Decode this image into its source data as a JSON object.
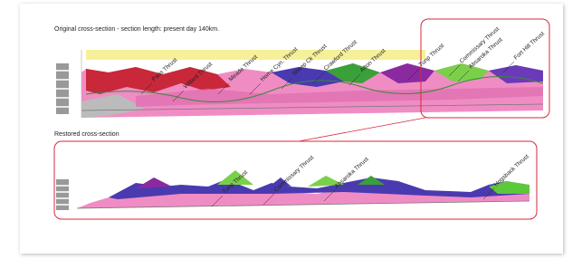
{
  "original": {
    "title": "Original cross-section - section length: present day 140km.",
    "faults": [
      "Paris Thrust",
      "Willard Thrust",
      "Meade Thrust",
      "Home Cyn. Thrust",
      "Sheep Ck Thrust",
      "Crawford Thrust",
      "Afton Thrust",
      "Tunp Thrust",
      "Commissary Thrust",
      "Absaroka Thrust",
      "Fort Hill Thrust"
    ]
  },
  "restored": {
    "title": "Restored cross-section",
    "faults": [
      "Tunp Thrust",
      "Commissary Thrust",
      "Absaroka Thrust",
      "Hogsback Thrust"
    ]
  }
}
